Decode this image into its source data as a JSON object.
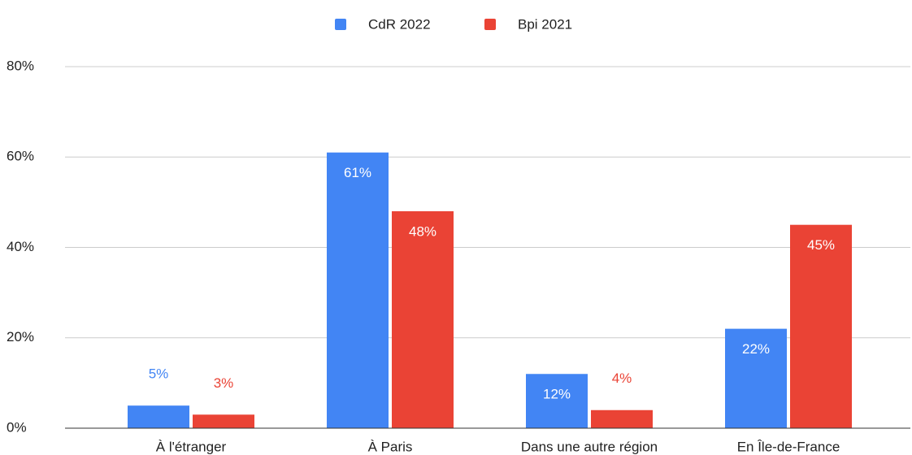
{
  "chart_data": {
    "type": "bar",
    "categories": [
      "À l'étranger",
      "À Paris",
      "Dans une autre région",
      "En Île-de-France"
    ],
    "series": [
      {
        "name": "CdR 2022",
        "color": "#4285f4",
        "values": [
          5,
          61,
          12,
          22
        ],
        "value_labels": [
          "5%",
          "61%",
          "12%",
          "22%"
        ]
      },
      {
        "name": "Bpi 2021",
        "color": "#ea4335",
        "values": [
          3,
          48,
          4,
          45
        ],
        "value_labels": [
          "3%",
          "48%",
          "4%",
          "45%"
        ]
      }
    ],
    "ylim": [
      0,
      80
    ],
    "yticks": [
      {
        "value": 0,
        "label": "0%"
      },
      {
        "value": 20,
        "label": "20%"
      },
      {
        "value": 40,
        "label": "40%"
      },
      {
        "value": 60,
        "label": "60%"
      },
      {
        "value": 80,
        "label": "80%"
      }
    ],
    "grid": true,
    "legend": "top"
  }
}
